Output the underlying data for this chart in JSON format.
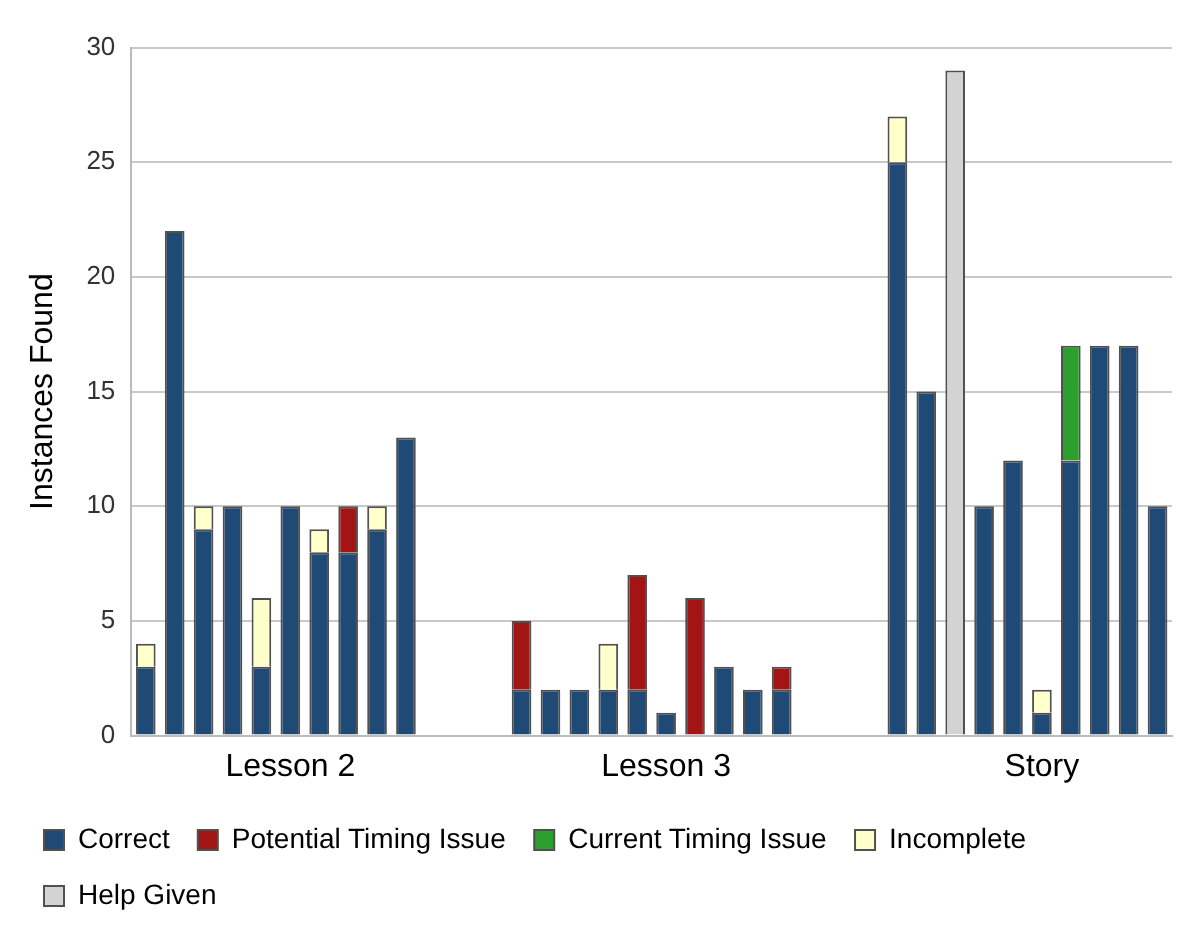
{
  "chart_data": {
    "type": "bar",
    "stacked": true,
    "ylabel": "Instances Found",
    "ylim": [
      0,
      30
    ],
    "yticks": [
      0,
      5,
      10,
      15,
      20,
      25,
      30
    ],
    "grid": "y",
    "legend": "bottom",
    "categories": [
      null,
      null,
      null,
      null,
      null,
      "Lesson 2",
      null,
      null,
      null,
      null,
      null,
      null,
      null,
      null,
      null,
      null,
      null,
      null,
      "Lesson 3",
      null,
      null,
      null,
      null,
      null,
      null,
      null,
      null,
      null,
      null,
      null,
      null,
      "Story",
      null,
      null,
      null,
      null
    ],
    "series": [
      {
        "name": "Correct",
        "color": "#1f4a75",
        "values": [
          3,
          22,
          9,
          10,
          3,
          10,
          8,
          8,
          9,
          13,
          null,
          null,
          null,
          2,
          2,
          2,
          2,
          2,
          1,
          null,
          3,
          2,
          2,
          null,
          null,
          null,
          25,
          15,
          null,
          10,
          12,
          1,
          12,
          17,
          17,
          10
        ]
      },
      {
        "name": "Potential Timing Issue",
        "color": "#a31515",
        "values": [
          null,
          null,
          null,
          null,
          null,
          null,
          null,
          2,
          null,
          null,
          null,
          null,
          null,
          3,
          null,
          null,
          null,
          5,
          null,
          6,
          null,
          null,
          1,
          null,
          null,
          null,
          null,
          null,
          null,
          null,
          null,
          null,
          null,
          null,
          null,
          null
        ]
      },
      {
        "name": "Current Timing Issue",
        "color": "#2ca02c",
        "values": [
          null,
          null,
          null,
          null,
          null,
          null,
          null,
          null,
          null,
          null,
          null,
          null,
          null,
          null,
          null,
          null,
          null,
          null,
          null,
          null,
          null,
          null,
          null,
          null,
          null,
          null,
          null,
          null,
          null,
          null,
          null,
          null,
          5,
          null,
          null,
          null
        ]
      },
      {
        "name": "Incomplete",
        "color": "#ffffcc",
        "values": [
          1,
          null,
          1,
          null,
          3,
          null,
          1,
          null,
          1,
          null,
          null,
          null,
          null,
          null,
          null,
          null,
          2,
          null,
          null,
          null,
          null,
          null,
          null,
          null,
          null,
          null,
          2,
          null,
          null,
          null,
          null,
          1,
          null,
          null,
          null,
          null
        ]
      },
      {
        "name": "Help Given",
        "color": "#d3d3d3",
        "values": [
          null,
          null,
          null,
          null,
          null,
          null,
          null,
          null,
          null,
          null,
          null,
          null,
          null,
          null,
          null,
          null,
          null,
          null,
          null,
          null,
          null,
          null,
          null,
          null,
          null,
          null,
          null,
          null,
          29,
          null,
          null,
          null,
          null,
          null,
          null,
          null
        ]
      }
    ]
  }
}
